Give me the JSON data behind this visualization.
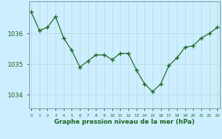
{
  "x": [
    0,
    1,
    2,
    3,
    4,
    5,
    6,
    7,
    8,
    9,
    10,
    11,
    12,
    13,
    14,
    15,
    16,
    17,
    18,
    19,
    20,
    21,
    22,
    23
  ],
  "y": [
    1036.7,
    1036.1,
    1036.2,
    1036.55,
    1035.85,
    1035.45,
    1034.9,
    1035.1,
    1035.3,
    1035.3,
    1035.15,
    1035.35,
    1035.35,
    1034.8,
    1034.35,
    1034.1,
    1034.35,
    1034.95,
    1035.2,
    1035.55,
    1035.6,
    1035.85,
    1036.0,
    1036.2
  ],
  "line_color": "#1a6620",
  "marker_color": "#1a6620",
  "bg_color": "#cceeff",
  "grid_color": "#bbdddd",
  "xlabel": "Graphe pression niveau de la mer (hPa)",
  "xlabel_color": "#1a6620",
  "tick_color": "#1a6620",
  "yticks": [
    1034,
    1035,
    1036
  ],
  "ylim": [
    1033.55,
    1037.05
  ],
  "xlim": [
    -0.3,
    23.3
  ],
  "border_color": "#7a9a9a"
}
